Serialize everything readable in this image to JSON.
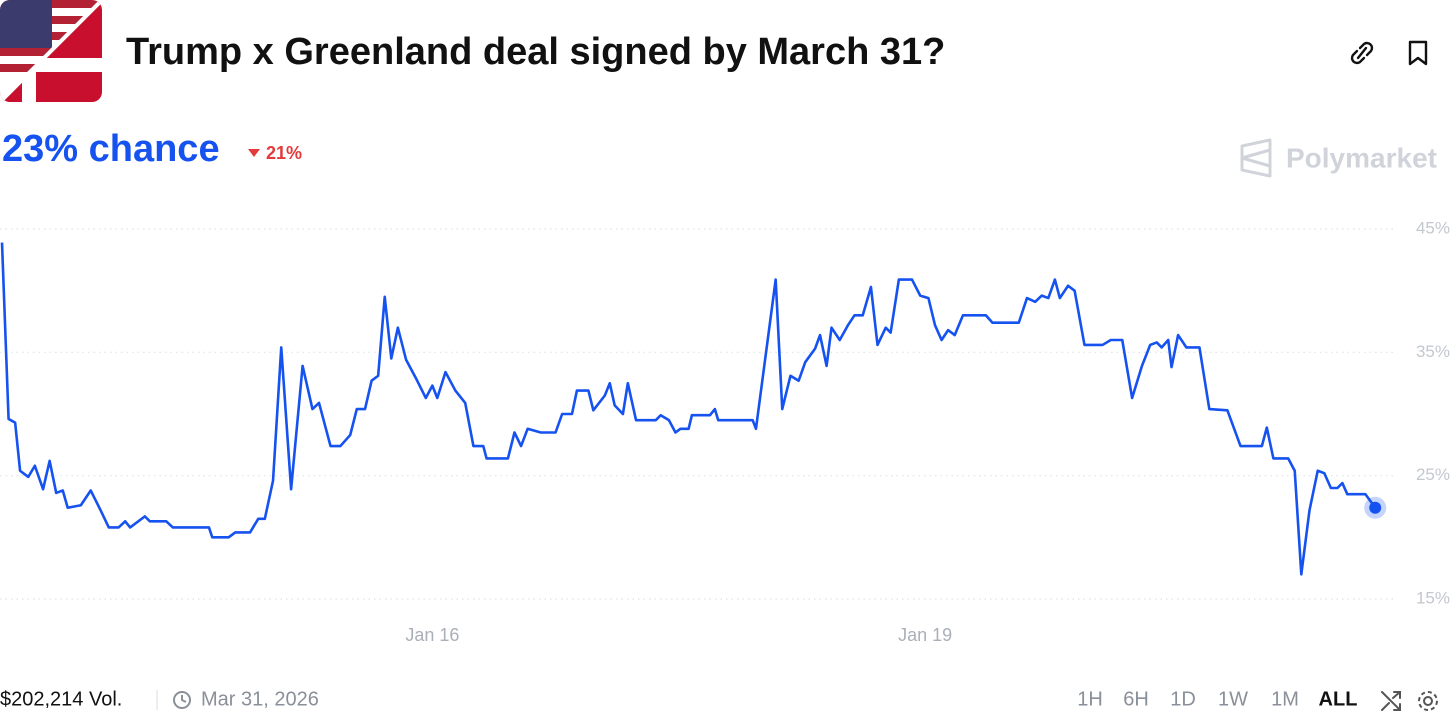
{
  "header": {
    "title": "Trump x Greenland deal signed by March 31?"
  },
  "chance": "23% chance",
  "change": "21%",
  "brand": "Polymarket",
  "chart_data": {
    "type": "line",
    "x": [
      13.38,
      13.42,
      13.46,
      13.49,
      13.54,
      13.58,
      13.63,
      13.67,
      13.71,
      13.75,
      13.78,
      13.86,
      13.92,
      13.98,
      14.03,
      14.09,
      14.13,
      14.16,
      14.25,
      14.28,
      14.38,
      14.42,
      14.64,
      14.66,
      14.76,
      14.8,
      14.89,
      14.94,
      14.98,
      15.03,
      15.08,
      15.14,
      15.21,
      15.27,
      15.31,
      15.38,
      15.44,
      15.5,
      15.54,
      15.59,
      15.63,
      15.67,
      15.71,
      15.75,
      15.79,
      15.84,
      15.9,
      15.96,
      16.0,
      16.03,
      16.08,
      16.14,
      16.2,
      16.25,
      16.31,
      16.33,
      16.46,
      16.5,
      16.54,
      16.58,
      16.66,
      16.75,
      16.79,
      16.85,
      16.88,
      16.95,
      16.98,
      17.05,
      17.08,
      17.11,
      17.16,
      17.19,
      17.24,
      17.36,
      17.39,
      17.44,
      17.48,
      17.51,
      17.56,
      17.58,
      17.69,
      17.72,
      17.74,
      17.95,
      17.97,
      18.09,
      18.13,
      18.18,
      18.23,
      18.27,
      18.33,
      18.36,
      18.4,
      18.43,
      18.48,
      18.53,
      18.57,
      18.62,
      18.67,
      18.71,
      18.76,
      18.79,
      18.84,
      18.92,
      18.97,
      19.02,
      19.06,
      19.1,
      19.14,
      19.18,
      19.23,
      19.37,
      19.41,
      19.57,
      19.62,
      19.67,
      19.71,
      19.75,
      19.79,
      19.82,
      19.87,
      19.91,
      19.97,
      20.08,
      20.13,
      20.2,
      20.26,
      20.32,
      20.37,
      20.41,
      20.44,
      20.48,
      20.5,
      20.54,
      20.59,
      20.67,
      20.73,
      20.84,
      20.92,
      21.05,
      21.08,
      21.12,
      21.21,
      21.25,
      21.29,
      21.34,
      21.39,
      21.43,
      21.47,
      21.51,
      21.54,
      21.57,
      21.68,
      21.74
    ],
    "series": [
      {
        "color": "#1652f0",
        "values": [
          43.9,
          29.6,
          29.3,
          25.4,
          24.9,
          25.8,
          23.9,
          26.2,
          23.6,
          23.8,
          22.4,
          22.6,
          23.8,
          22.2,
          20.8,
          20.8,
          21.3,
          20.8,
          21.7,
          21.3,
          21.3,
          20.8,
          20.8,
          20.0,
          20.0,
          20.4,
          20.4,
          21.5,
          21.5,
          24.6,
          35.4,
          23.9,
          33.9,
          30.4,
          30.9,
          27.4,
          27.4,
          28.3,
          30.4,
          30.4,
          32.7,
          33.1,
          39.5,
          34.5,
          37.0,
          34.4,
          32.9,
          31.3,
          32.3,
          31.3,
          33.4,
          31.9,
          30.9,
          27.4,
          27.4,
          26.4,
          26.4,
          28.5,
          27.4,
          28.8,
          28.5,
          28.5,
          30.0,
          30.0,
          31.9,
          31.9,
          30.3,
          31.5,
          32.5,
          30.7,
          30.0,
          32.5,
          29.5,
          29.5,
          29.9,
          29.5,
          28.5,
          28.8,
          28.8,
          29.9,
          29.9,
          30.4,
          29.5,
          29.5,
          28.8,
          40.9,
          30.4,
          33.1,
          32.7,
          34.2,
          35.3,
          36.4,
          33.9,
          37.0,
          36.0,
          37.2,
          38.0,
          38.0,
          40.3,
          35.6,
          37.0,
          36.6,
          40.9,
          40.9,
          39.6,
          39.4,
          37.2,
          36.0,
          36.8,
          36.4,
          38.0,
          38.0,
          37.4,
          37.4,
          39.4,
          39.1,
          39.6,
          39.4,
          40.9,
          39.4,
          40.4,
          40.0,
          35.6,
          35.6,
          36.0,
          36.0,
          31.3,
          33.9,
          35.6,
          35.8,
          35.4,
          36.0,
          33.8,
          36.4,
          35.4,
          35.4,
          30.4,
          30.3,
          27.4,
          27.4,
          28.9,
          26.4,
          26.4,
          25.4,
          17.0,
          22.2,
          25.4,
          25.2,
          24.0,
          24.0,
          24.4,
          23.5,
          23.5,
          22.4
        ]
      }
    ],
    "xlim": [
      13.38,
      21.83
    ],
    "ylim": [
      15,
      45
    ],
    "xticks": [
      {
        "value": 16,
        "label": "Jan 16"
      },
      {
        "value": 19,
        "label": "Jan 19"
      }
    ],
    "yticks": [
      {
        "value": 15,
        "label": "15%"
      },
      {
        "value": 25,
        "label": "25%"
      },
      {
        "value": 35,
        "label": "35%"
      },
      {
        "value": 45,
        "label": "45%"
      }
    ],
    "grid": true
  },
  "footer": {
    "volume": "$202,214 Vol.",
    "end_date": "Mar 31, 2026",
    "ranges": [
      "1H",
      "6H",
      "1D",
      "1W",
      "1M",
      "ALL"
    ],
    "active_range": 5
  }
}
